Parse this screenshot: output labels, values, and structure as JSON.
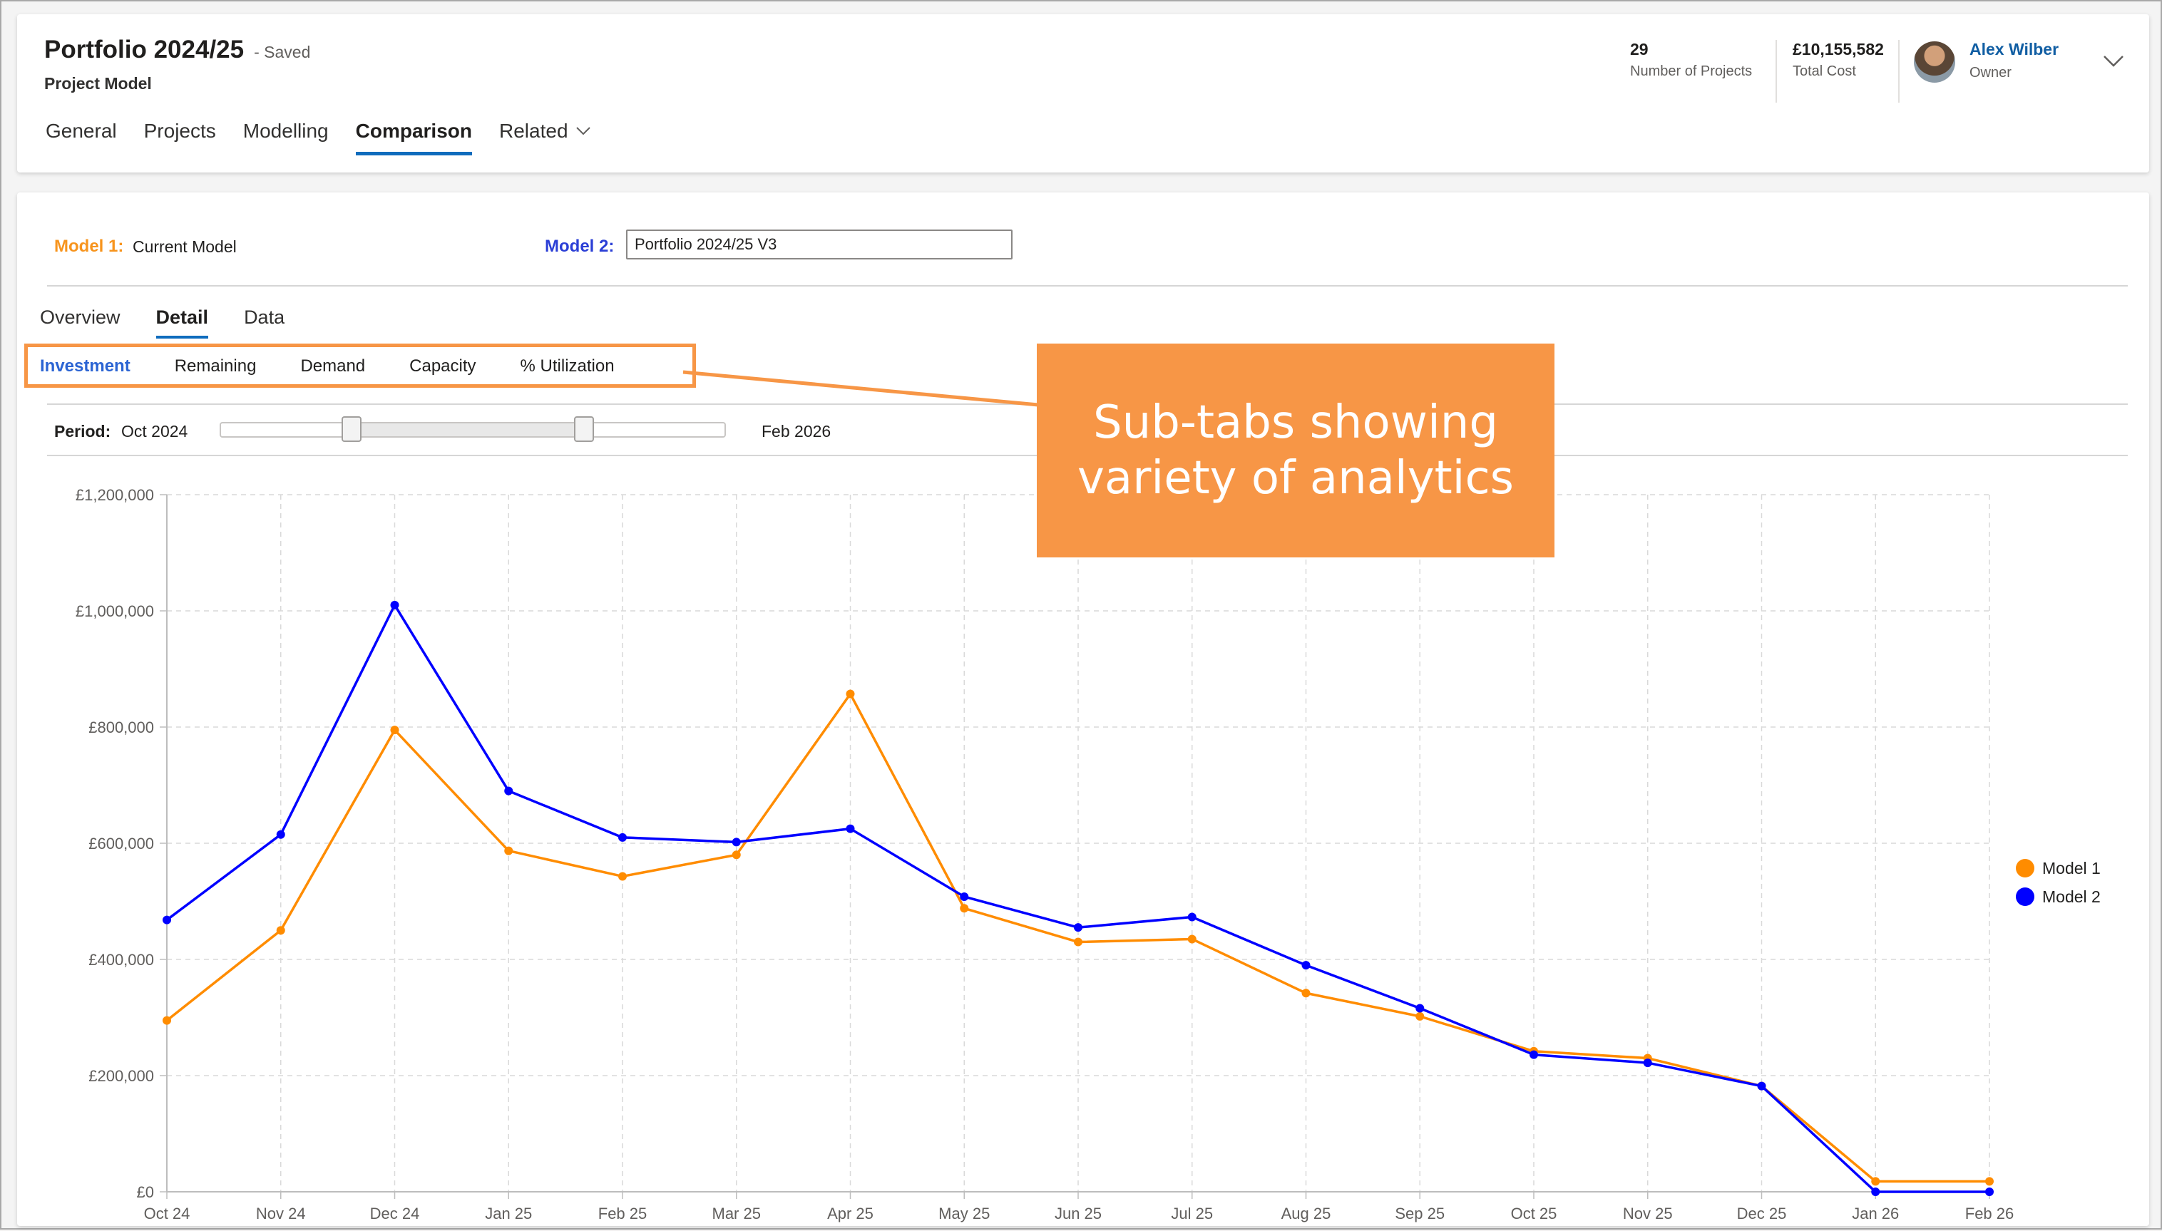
{
  "header": {
    "title": "Portfolio 2024/25",
    "status": "- Saved",
    "subtitle": "Project Model",
    "tabs": [
      {
        "label": "General"
      },
      {
        "label": "Projects"
      },
      {
        "label": "Modelling"
      },
      {
        "label": "Comparison",
        "active": true
      },
      {
        "label": "Related",
        "has_dropdown": true
      }
    ],
    "kpis": [
      {
        "value": "29",
        "label": "Number of Projects"
      },
      {
        "value": "£10,155,582",
        "label": "Total Cost"
      }
    ],
    "owner": {
      "name": "Alex Wilber",
      "role": "Owner"
    }
  },
  "comparison": {
    "model1": {
      "label": "Model 1:",
      "value": "Current Model"
    },
    "model2": {
      "label": "Model 2:",
      "value": "Portfolio 2024/25 V3"
    },
    "tabs": [
      {
        "label": "Overview"
      },
      {
        "label": "Detail",
        "active": true
      },
      {
        "label": "Data"
      }
    ],
    "sub_tabs": [
      {
        "label": "Investment",
        "active": true
      },
      {
        "label": "Remaining"
      },
      {
        "label": "Demand"
      },
      {
        "label": "Capacity"
      },
      {
        "label": "% Utilization"
      }
    ],
    "period": {
      "label": "Period:",
      "start": "Oct 2024",
      "end": "Feb 2026",
      "selected_start_fraction": 0.26,
      "selected_end_fraction": 0.72
    }
  },
  "callout": {
    "line1": "Sub-tabs showing",
    "line2": "variety of analytics"
  },
  "colors": {
    "model1": "#ff8c00",
    "model2": "#0000ff",
    "accent": "#0f6cbd",
    "callout": "#f79646"
  },
  "chart_data": {
    "type": "line",
    "categories": [
      "Oct 24",
      "Nov 24",
      "Dec 24",
      "Jan 25",
      "Feb 25",
      "Mar 25",
      "Apr 25",
      "May 25",
      "Jun 25",
      "Jul 25",
      "Aug 25",
      "Sep 25",
      "Oct 25",
      "Nov 25",
      "Dec 25",
      "Jan 26",
      "Feb 26"
    ],
    "series": [
      {
        "name": "Model 1",
        "color": "#ff8c00",
        "values": [
          295000,
          450000,
          795000,
          587000,
          543000,
          580000,
          857000,
          488000,
          430000,
          435000,
          342000,
          302000,
          242000,
          230000,
          182000,
          18000,
          18000
        ]
      },
      {
        "name": "Model 2",
        "color": "#0000ff",
        "values": [
          468000,
          615000,
          1010000,
          690000,
          610000,
          602000,
          625000,
          508000,
          455000,
          473000,
          390000,
          316000,
          236000,
          222000,
          182000,
          0,
          0
        ]
      }
    ],
    "ylim": [
      0,
      1200000
    ],
    "yticks": [
      "£0",
      "£200,000",
      "£400,000",
      "£600,000",
      "£800,000",
      "£1,000,000",
      "£1,200,000"
    ],
    "ytick_values": [
      0,
      200000,
      400000,
      600000,
      800000,
      1000000,
      1200000
    ],
    "grid": true,
    "legend_position": "right"
  }
}
